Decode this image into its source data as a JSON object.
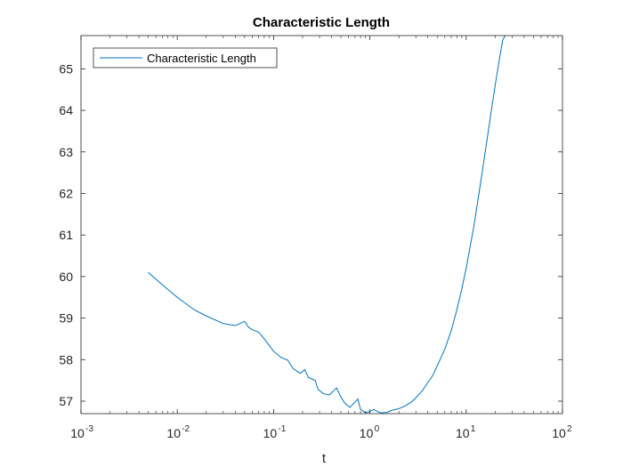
{
  "chart_data": {
    "type": "line",
    "title": "Characteristic Length",
    "xlabel": "t",
    "ylabel": "",
    "xscale": "log",
    "xlim": [
      0.001,
      100
    ],
    "ylim": [
      56.7,
      65.8
    ],
    "x_ticks": [
      {
        "base": "10",
        "exp": "-3"
      },
      {
        "base": "10",
        "exp": "-2"
      },
      {
        "base": "10",
        "exp": "-1"
      },
      {
        "base": "10",
        "exp": "0"
      },
      {
        "base": "10",
        "exp": "1"
      },
      {
        "base": "10",
        "exp": "2"
      }
    ],
    "y_ticks": [
      "57",
      "58",
      "59",
      "60",
      "61",
      "62",
      "63",
      "64",
      "65"
    ],
    "legend": {
      "position": "top-left",
      "entries": [
        "Characteristic Length"
      ]
    },
    "grid": false,
    "colors": {
      "series": "#0072bd",
      "axes": "#262626"
    },
    "series": [
      {
        "name": "Characteristic Length",
        "x": [
          0.005,
          0.007,
          0.01,
          0.015,
          0.02,
          0.03,
          0.04,
          0.05,
          0.055,
          0.06,
          0.07,
          0.08,
          0.1,
          0.12,
          0.14,
          0.16,
          0.19,
          0.21,
          0.23,
          0.27,
          0.29,
          0.33,
          0.38,
          0.45,
          0.5,
          0.55,
          0.62,
          0.7,
          0.75,
          0.8,
          0.9,
          1.0,
          1.1,
          1.2,
          1.3,
          1.5,
          1.7,
          2.0,
          2.3,
          2.7,
          3.0,
          3.5,
          4.0,
          4.5,
          5.0,
          6.0,
          7.0,
          8.0,
          9.0,
          10.0,
          12.0,
          14.0,
          16.0,
          18.0,
          20.0,
          22.0,
          24.0,
          25.5
        ],
        "values": [
          60.1,
          59.8,
          59.5,
          59.2,
          59.05,
          58.87,
          58.82,
          58.92,
          58.78,
          58.72,
          58.66,
          58.5,
          58.2,
          58.05,
          57.99,
          57.78,
          57.67,
          57.76,
          57.57,
          57.5,
          57.28,
          57.18,
          57.15,
          57.32,
          57.1,
          56.95,
          56.85,
          56.98,
          57.05,
          56.8,
          56.72,
          56.75,
          56.8,
          56.75,
          56.72,
          56.73,
          56.78,
          56.82,
          56.88,
          56.98,
          57.08,
          57.25,
          57.45,
          57.62,
          57.85,
          58.25,
          58.7,
          59.2,
          59.7,
          60.2,
          61.2,
          62.2,
          63.1,
          63.9,
          64.6,
          65.2,
          65.7,
          65.8
        ]
      }
    ]
  }
}
